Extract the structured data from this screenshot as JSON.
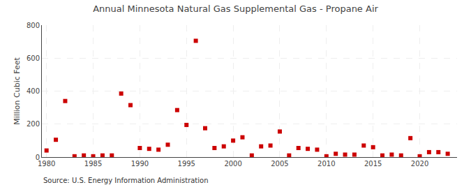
{
  "chart_data": {
    "type": "scatter",
    "title": "Annual Minnesota Natural Gas Supplemental Gas - Propane Air",
    "ylabel": "Million Cubic Feet",
    "annotations": [
      "Source: U.S. Energy Information Administration"
    ],
    "color": "#cc0000",
    "marker": "square",
    "grid": true,
    "xlim": [
      1979.5,
      2024
    ],
    "ylim": [
      0,
      800
    ],
    "xticks": [
      1980,
      1985,
      1990,
      1995,
      2000,
      2005,
      2010,
      2015,
      2020
    ],
    "yticks": [
      0,
      200,
      400,
      600,
      800
    ],
    "x": [
      1980,
      1981,
      1982,
      1983,
      1984,
      1985,
      1986,
      1987,
      1988,
      1989,
      1990,
      1991,
      1992,
      1993,
      1994,
      1995,
      1996,
      1997,
      1998,
      1999,
      2000,
      2001,
      2002,
      2003,
      2004,
      2005,
      2006,
      2007,
      2008,
      2009,
      2010,
      2011,
      2012,
      2013,
      2014,
      2015,
      2016,
      2017,
      2018,
      2019,
      2020,
      2021,
      2022,
      2023
    ],
    "values": [
      40,
      105,
      340,
      5,
      10,
      5,
      10,
      10,
      385,
      315,
      55,
      50,
      45,
      75,
      285,
      195,
      705,
      175,
      55,
      65,
      100,
      120,
      10,
      65,
      70,
      155,
      10,
      55,
      50,
      45,
      5,
      20,
      15,
      15,
      70,
      60,
      10,
      15,
      10,
      115,
      5,
      30,
      30,
      20
    ]
  }
}
